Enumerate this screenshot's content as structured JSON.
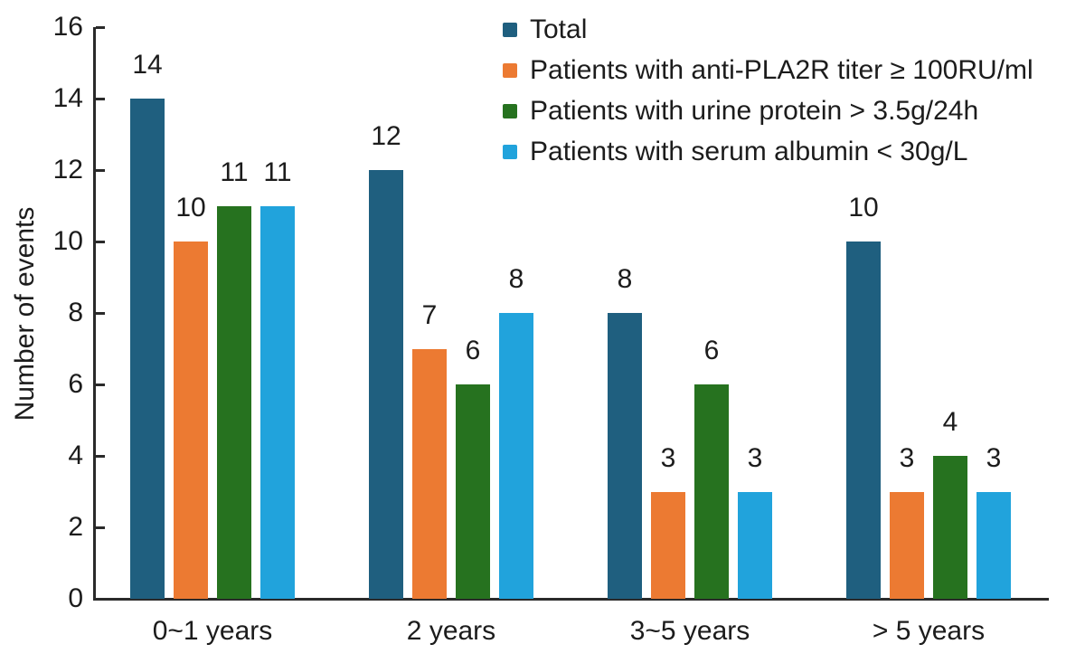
{
  "chart_data": {
    "type": "bar",
    "title": "",
    "xlabel": "",
    "ylabel": "Number of events",
    "ylim": [
      0,
      16
    ],
    "ytick_step": 2,
    "yticks": [
      0,
      2,
      4,
      6,
      8,
      10,
      12,
      14,
      16
    ],
    "grid": false,
    "legend_position": "upper right",
    "bar_value_labels": true,
    "categories": [
      "0~1 years",
      "2 years",
      "3~5 years",
      "> 5 years"
    ],
    "series": [
      {
        "name": "Total",
        "color": "#1f5f7f",
        "values": [
          14,
          12,
          8,
          10
        ]
      },
      {
        "name": "Patients with anti-PLA2R titer ≥ 100RU/ml",
        "color": "#ec7a32",
        "values": [
          10,
          7,
          3,
          3
        ]
      },
      {
        "name": "Patients with urine protein > 3.5g/24h",
        "color": "#26721f",
        "values": [
          11,
          6,
          6,
          4
        ]
      },
      {
        "name": "Patients with serum albumin < 30g/L",
        "color": "#21a3dc",
        "values": [
          11,
          8,
          3,
          3
        ]
      }
    ],
    "colors": {
      "axis": "#2a2a2a",
      "text": "#1c1c1c",
      "background": "#ffffff"
    }
  }
}
